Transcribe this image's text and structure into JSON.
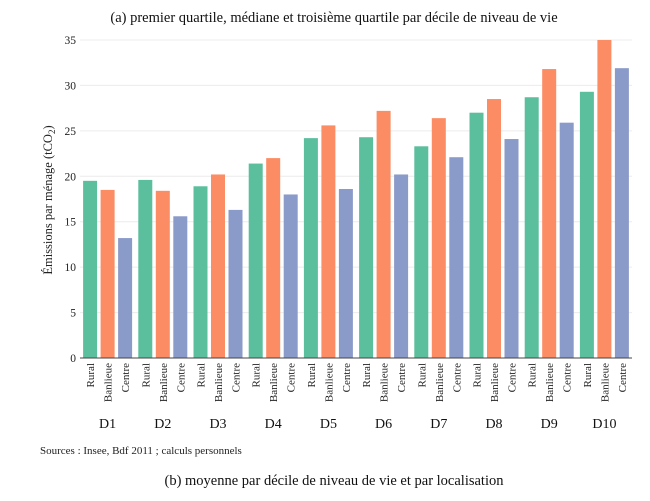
{
  "chart_data": {
    "type": "bar",
    "title": "(a) premier quartile, médiane et troisième quartile par décile de niveau de vie",
    "caption": "(b) moyenne par décile de niveau de vie et par localisation",
    "source": "Sources : Insee, Bdf 2011 ; calculs personnels",
    "ylabel": "Émissions par ménage (tCO",
    "ylabel_sub": "2",
    "ylabel_end": ")",
    "ylim": [
      0,
      35
    ],
    "yticks": [
      0,
      5,
      10,
      15,
      20,
      25,
      30,
      35
    ],
    "grid": true,
    "categories": [
      "D1",
      "D2",
      "D3",
      "D4",
      "D5",
      "D6",
      "D7",
      "D8",
      "D9",
      "D10"
    ],
    "series": [
      {
        "name": "Rural",
        "color": "#5bbf9e",
        "values": [
          19.5,
          19.6,
          18.9,
          21.4,
          24.2,
          24.3,
          23.3,
          27.0,
          28.7,
          29.3
        ]
      },
      {
        "name": "Banlieue",
        "color": "#fb8c63",
        "values": [
          18.5,
          18.4,
          20.2,
          22.0,
          25.6,
          27.2,
          26.4,
          28.5,
          31.8,
          35.0
        ]
      },
      {
        "name": "Centre",
        "color": "#8b9bc9",
        "values": [
          13.2,
          15.6,
          16.3,
          18.0,
          18.6,
          20.2,
          22.1,
          24.1,
          25.9,
          31.9
        ]
      }
    ]
  }
}
